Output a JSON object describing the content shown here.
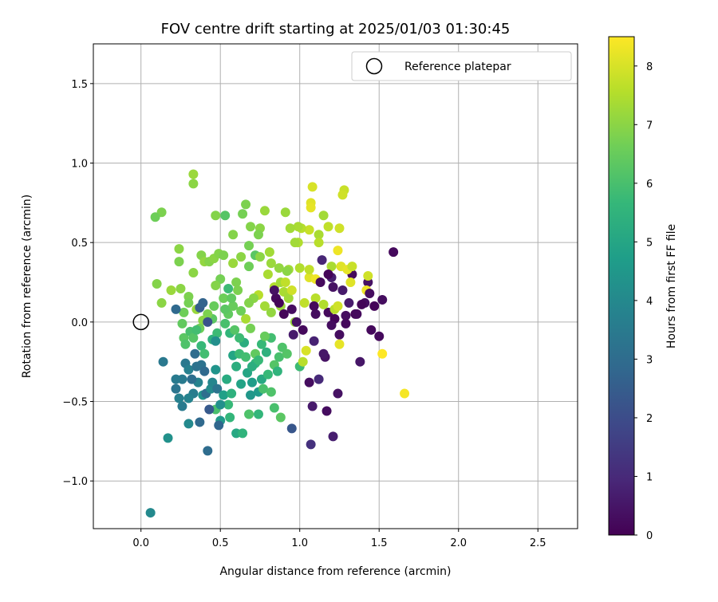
{
  "chart_data": {
    "type": "scatter",
    "title": "FOV centre drift starting at 2025/01/03 01:30:45",
    "xlabel": "Angular distance from reference (arcmin)",
    "ylabel": "Rotation from reference (arcmin)",
    "xlim": [
      -0.3,
      2.75
    ],
    "ylim": [
      -1.3,
      1.75
    ],
    "xticks": [
      0.0,
      0.5,
      1.0,
      1.5,
      2.0,
      2.5
    ],
    "xtick_labels": [
      "0.0",
      "0.5",
      "1.0",
      "1.5",
      "2.0",
      "2.5"
    ],
    "yticks": [
      -1.0,
      -0.5,
      0.0,
      0.5,
      1.0,
      1.5
    ],
    "ytick_labels": [
      "−1.0",
      "−0.5",
      "0.0",
      "0.5",
      "1.0",
      "1.5"
    ],
    "grid": true,
    "legend": {
      "placement": "top-right",
      "entries": [
        {
          "label": "Reference platepar",
          "marker": "open-circle"
        }
      ]
    },
    "reference_point": {
      "x": 0.0,
      "y": 0.0
    },
    "colorbar": {
      "label": "Hours from first FF file",
      "range": [
        0,
        8.5
      ],
      "ticks": [
        0,
        1,
        2,
        3,
        4,
        5,
        6,
        7,
        8
      ],
      "tick_labels": [
        "0",
        "1",
        "2",
        "3",
        "4",
        "5",
        "6",
        "7",
        "8"
      ],
      "colormap": "viridis"
    },
    "colormap_stops": [
      "#440154",
      "#482878",
      "#3e4989",
      "#31688e",
      "#26828e",
      "#1f9e89",
      "#35b779",
      "#6ece58",
      "#b5de2b",
      "#fde725"
    ],
    "points": [
      {
        "x": 1.59,
        "y": 0.44,
        "c": 0.2
      },
      {
        "x": 1.52,
        "y": 0.14,
        "c": 0.3
      },
      {
        "x": 1.5,
        "y": -0.09,
        "c": 0.2
      },
      {
        "x": 1.47,
        "y": 0.1,
        "c": 0.1
      },
      {
        "x": 1.45,
        "y": -0.05,
        "c": 0.2
      },
      {
        "x": 1.43,
        "y": 0.25,
        "c": 0.4
      },
      {
        "x": 1.41,
        "y": 0.12,
        "c": 0.3
      },
      {
        "x": 1.38,
        "y": -0.25,
        "c": 0.5
      },
      {
        "x": 1.35,
        "y": 0.05,
        "c": 0.1
      },
      {
        "x": 1.33,
        "y": 0.3,
        "c": 0.2
      },
      {
        "x": 1.29,
        "y": 0.04,
        "c": 0.3
      },
      {
        "x": 1.27,
        "y": 0.2,
        "c": 0.6
      },
      {
        "x": 1.25,
        "y": -0.08,
        "c": 0.3
      },
      {
        "x": 1.22,
        "y": 0.02,
        "c": 0.1
      },
      {
        "x": 1.2,
        "y": 0.28,
        "c": 0.7
      },
      {
        "x": 1.18,
        "y": 0.06,
        "c": 0.2
      },
      {
        "x": 1.16,
        "y": -0.22,
        "c": 0.4
      },
      {
        "x": 1.14,
        "y": 0.39,
        "c": 0.9
      },
      {
        "x": 1.12,
        "y": -0.36,
        "c": 1.0
      },
      {
        "x": 1.09,
        "y": -0.12,
        "c": 0.8
      },
      {
        "x": 1.06,
        "y": -0.38,
        "c": 0.3
      },
      {
        "x": 1.08,
        "y": -0.53,
        "c": 0.6
      },
      {
        "x": 1.17,
        "y": -0.56,
        "c": 0.3
      },
      {
        "x": 1.24,
        "y": -0.45,
        "c": 0.4
      },
      {
        "x": 1.21,
        "y": -0.72,
        "c": 0.7
      },
      {
        "x": 1.07,
        "y": -0.77,
        "c": 1.2
      },
      {
        "x": 0.95,
        "y": -0.67,
        "c": 2.3
      },
      {
        "x": 0.88,
        "y": -0.6,
        "c": 6.3
      },
      {
        "x": 0.84,
        "y": -0.54,
        "c": 6.0
      },
      {
        "x": 0.74,
        "y": -0.58,
        "c": 5.6
      },
      {
        "x": 0.68,
        "y": -0.58,
        "c": 6.1
      },
      {
        "x": 0.6,
        "y": -0.7,
        "c": 5.1
      },
      {
        "x": 0.64,
        "y": -0.7,
        "c": 5.5
      },
      {
        "x": 0.56,
        "y": -0.6,
        "c": 5.6
      },
      {
        "x": 0.55,
        "y": -0.52,
        "c": 5.7
      },
      {
        "x": 0.5,
        "y": -0.62,
        "c": 4.6
      },
      {
        "x": 0.49,
        "y": -0.65,
        "c": 2.8
      },
      {
        "x": 0.47,
        "y": -0.55,
        "c": 6.0
      },
      {
        "x": 0.43,
        "y": -0.55,
        "c": 2.4
      },
      {
        "x": 0.42,
        "y": -0.81,
        "c": 3.0
      },
      {
        "x": 0.37,
        "y": -0.63,
        "c": 2.9
      },
      {
        "x": 0.3,
        "y": -0.64,
        "c": 4.0
      },
      {
        "x": 0.26,
        "y": -0.53,
        "c": 3.5
      },
      {
        "x": 0.22,
        "y": -0.42,
        "c": 3.3
      },
      {
        "x": 0.17,
        "y": -0.73,
        "c": 4.3
      },
      {
        "x": 0.06,
        "y": -1.2,
        "c": 4.0
      },
      {
        "x": 0.14,
        "y": -0.25,
        "c": 3.4
      },
      {
        "x": 0.22,
        "y": -0.36,
        "c": 3.5
      },
      {
        "x": 0.28,
        "y": -0.26,
        "c": 3.4
      },
      {
        "x": 0.3,
        "y": -0.3,
        "c": 3.7
      },
      {
        "x": 0.33,
        "y": -0.45,
        "c": 3.6
      },
      {
        "x": 0.34,
        "y": -0.2,
        "c": 3.0
      },
      {
        "x": 0.36,
        "y": -0.38,
        "c": 3.8
      },
      {
        "x": 0.38,
        "y": -0.27,
        "c": 3.2
      },
      {
        "x": 0.39,
        "y": -0.46,
        "c": 4.4
      },
      {
        "x": 0.4,
        "y": -0.31,
        "c": 2.9
      },
      {
        "x": 0.41,
        "y": -0.45,
        "c": 3.1
      },
      {
        "x": 0.44,
        "y": -0.42,
        "c": 4.1
      },
      {
        "x": 0.45,
        "y": -0.38,
        "c": 3.9
      },
      {
        "x": 0.47,
        "y": -0.3,
        "c": 4.4
      },
      {
        "x": 0.48,
        "y": -0.42,
        "c": 3.3
      },
      {
        "x": 0.5,
        "y": -0.52,
        "c": 4.2
      },
      {
        "x": 0.52,
        "y": -0.46,
        "c": 4.8
      },
      {
        "x": 0.54,
        "y": -0.36,
        "c": 5.2
      },
      {
        "x": 0.57,
        "y": -0.45,
        "c": 5.4
      },
      {
        "x": 0.58,
        "y": -0.21,
        "c": 5.0
      },
      {
        "x": 0.6,
        "y": -0.28,
        "c": 5.3
      },
      {
        "x": 0.62,
        "y": -0.2,
        "c": 5.8
      },
      {
        "x": 0.63,
        "y": -0.39,
        "c": 4.9
      },
      {
        "x": 0.65,
        "y": -0.13,
        "c": 5.3
      },
      {
        "x": 0.67,
        "y": -0.32,
        "c": 5.0
      },
      {
        "x": 0.69,
        "y": -0.46,
        "c": 4.5
      },
      {
        "x": 0.7,
        "y": -0.38,
        "c": 4.7
      },
      {
        "x": 0.72,
        "y": -0.26,
        "c": 5.6
      },
      {
        "x": 0.74,
        "y": -0.44,
        "c": 4.6
      },
      {
        "x": 0.76,
        "y": -0.36,
        "c": 5.1
      },
      {
        "x": 0.77,
        "y": -0.42,
        "c": 6.0
      },
      {
        "x": 0.79,
        "y": -0.19,
        "c": 5.4
      },
      {
        "x": 0.8,
        "y": -0.33,
        "c": 5.7
      },
      {
        "x": 0.82,
        "y": -0.44,
        "c": 6.1
      },
      {
        "x": 0.84,
        "y": -0.27,
        "c": 6.2
      },
      {
        "x": 0.86,
        "y": -0.31,
        "c": 5.5
      },
      {
        "x": 0.87,
        "y": -0.22,
        "c": 6.0
      },
      {
        "x": 0.89,
        "y": -0.16,
        "c": 6.1
      },
      {
        "x": 0.92,
        "y": -0.2,
        "c": 6.2
      },
      {
        "x": 0.82,
        "y": -0.1,
        "c": 5.9
      },
      {
        "x": 0.76,
        "y": -0.14,
        "c": 5.7
      },
      {
        "x": 0.72,
        "y": -0.2,
        "c": 6.4
      },
      {
        "x": 1.0,
        "y": -0.28,
        "c": 5.8
      },
      {
        "x": 1.02,
        "y": -0.25,
        "c": 7.6
      },
      {
        "x": 1.04,
        "y": -0.18,
        "c": 8.0
      },
      {
        "x": 0.97,
        "y": 0.0,
        "c": 7.2
      },
      {
        "x": 1.03,
        "y": 0.12,
        "c": 7.7
      },
      {
        "x": 1.1,
        "y": 0.15,
        "c": 7.6
      },
      {
        "x": 1.15,
        "y": 0.11,
        "c": 7.5
      },
      {
        "x": 1.22,
        "y": 0.08,
        "c": 7.6
      },
      {
        "x": 1.24,
        "y": 0.1,
        "c": 7.9
      },
      {
        "x": 1.25,
        "y": -0.14,
        "c": 8.2
      },
      {
        "x": 1.42,
        "y": 0.2,
        "c": 8.3
      },
      {
        "x": 1.52,
        "y": -0.2,
        "c": 8.5
      },
      {
        "x": 1.66,
        "y": -0.45,
        "c": 8.4
      },
      {
        "x": 1.28,
        "y": 0.83,
        "c": 7.8
      },
      {
        "x": 1.27,
        "y": 0.8,
        "c": 7.9
      },
      {
        "x": 1.08,
        "y": 0.85,
        "c": 8.0
      },
      {
        "x": 1.07,
        "y": 0.75,
        "c": 8.1
      },
      {
        "x": 1.07,
        "y": 0.72,
        "c": 8.2
      },
      {
        "x": 1.15,
        "y": 0.67,
        "c": 7.3
      },
      {
        "x": 1.18,
        "y": 0.6,
        "c": 7.7
      },
      {
        "x": 1.25,
        "y": 0.59,
        "c": 7.9
      },
      {
        "x": 1.12,
        "y": 0.55,
        "c": 7.4
      },
      {
        "x": 1.06,
        "y": 0.58,
        "c": 7.8
      },
      {
        "x": 1.01,
        "y": 0.59,
        "c": 7.6
      },
      {
        "x": 0.99,
        "y": 0.6,
        "c": 7.4
      },
      {
        "x": 0.94,
        "y": 0.59,
        "c": 7.3
      },
      {
        "x": 0.91,
        "y": 0.69,
        "c": 7.2
      },
      {
        "x": 0.99,
        "y": 0.5,
        "c": 7.5
      },
      {
        "x": 0.97,
        "y": 0.5,
        "c": 7.3
      },
      {
        "x": 1.12,
        "y": 0.5,
        "c": 7.6
      },
      {
        "x": 1.2,
        "y": 0.35,
        "c": 7.4
      },
      {
        "x": 1.24,
        "y": 0.45,
        "c": 8.3
      },
      {
        "x": 1.26,
        "y": 0.35,
        "c": 8.1
      },
      {
        "x": 1.3,
        "y": 0.33,
        "c": 8.2
      },
      {
        "x": 1.33,
        "y": 0.35,
        "c": 7.8
      },
      {
        "x": 1.32,
        "y": 0.25,
        "c": 8.1
      },
      {
        "x": 1.43,
        "y": 0.29,
        "c": 7.9
      },
      {
        "x": 1.06,
        "y": 0.28,
        "c": 8.1
      },
      {
        "x": 1.1,
        "y": 0.27,
        "c": 8.3
      },
      {
        "x": 1.06,
        "y": 0.33,
        "c": 7.7
      },
      {
        "x": 1.0,
        "y": 0.34,
        "c": 7.5
      },
      {
        "x": 0.93,
        "y": 0.33,
        "c": 7.3
      },
      {
        "x": 0.87,
        "y": 0.34,
        "c": 7.1
      },
      {
        "x": 0.78,
        "y": 0.7,
        "c": 7.2
      },
      {
        "x": 0.75,
        "y": 0.59,
        "c": 7.0
      },
      {
        "x": 0.74,
        "y": 0.55,
        "c": 6.8
      },
      {
        "x": 0.69,
        "y": 0.6,
        "c": 6.9
      },
      {
        "x": 0.66,
        "y": 0.74,
        "c": 6.8
      },
      {
        "x": 0.64,
        "y": 0.68,
        "c": 6.7
      },
      {
        "x": 0.58,
        "y": 0.55,
        "c": 6.9
      },
      {
        "x": 0.53,
        "y": 0.67,
        "c": 6.2
      },
      {
        "x": 0.47,
        "y": 0.67,
        "c": 6.9
      },
      {
        "x": 0.33,
        "y": 0.93,
        "c": 7.2
      },
      {
        "x": 0.33,
        "y": 0.87,
        "c": 7.0
      },
      {
        "x": 0.13,
        "y": 0.69,
        "c": 6.8
      },
      {
        "x": 0.09,
        "y": 0.66,
        "c": 6.6
      },
      {
        "x": 0.24,
        "y": 0.46,
        "c": 7.0
      },
      {
        "x": 0.24,
        "y": 0.38,
        "c": 6.8
      },
      {
        "x": 0.1,
        "y": 0.24,
        "c": 6.9
      },
      {
        "x": 0.13,
        "y": 0.12,
        "c": 7.0
      },
      {
        "x": 0.19,
        "y": 0.2,
        "c": 7.2
      },
      {
        "x": 0.25,
        "y": 0.21,
        "c": 7.0
      },
      {
        "x": 0.3,
        "y": 0.16,
        "c": 6.8
      },
      {
        "x": 0.33,
        "y": 0.31,
        "c": 7.0
      },
      {
        "x": 0.38,
        "y": 0.42,
        "c": 6.9
      },
      {
        "x": 0.4,
        "y": 0.38,
        "c": 7.1
      },
      {
        "x": 0.43,
        "y": 0.38,
        "c": 6.9
      },
      {
        "x": 0.46,
        "y": 0.4,
        "c": 7.0
      },
      {
        "x": 0.49,
        "y": 0.43,
        "c": 6.9
      },
      {
        "x": 0.52,
        "y": 0.42,
        "c": 6.8
      },
      {
        "x": 0.58,
        "y": 0.37,
        "c": 7.2
      },
      {
        "x": 0.63,
        "y": 0.41,
        "c": 7.0
      },
      {
        "x": 0.68,
        "y": 0.48,
        "c": 6.7
      },
      {
        "x": 0.72,
        "y": 0.42,
        "c": 6.3
      },
      {
        "x": 0.75,
        "y": 0.41,
        "c": 7.0
      },
      {
        "x": 0.81,
        "y": 0.44,
        "c": 7.3
      },
      {
        "x": 0.82,
        "y": 0.37,
        "c": 7.2
      },
      {
        "x": 0.8,
        "y": 0.3,
        "c": 7.4
      },
      {
        "x": 0.84,
        "y": 0.22,
        "c": 7.5
      },
      {
        "x": 0.88,
        "y": 0.25,
        "c": 7.3
      },
      {
        "x": 0.9,
        "y": 0.19,
        "c": 7.4
      },
      {
        "x": 0.93,
        "y": 0.15,
        "c": 7.3
      },
      {
        "x": 0.88,
        "y": 0.1,
        "c": 7.2
      },
      {
        "x": 0.82,
        "y": 0.06,
        "c": 7.1
      },
      {
        "x": 0.78,
        "y": 0.1,
        "c": 7.3
      },
      {
        "x": 0.74,
        "y": 0.17,
        "c": 7.6
      },
      {
        "x": 0.71,
        "y": 0.15,
        "c": 7.0
      },
      {
        "x": 0.68,
        "y": 0.12,
        "c": 6.9
      },
      {
        "x": 0.66,
        "y": 0.02,
        "c": 7.4
      },
      {
        "x": 0.63,
        "y": 0.07,
        "c": 6.6
      },
      {
        "x": 0.61,
        "y": 0.2,
        "c": 6.8
      },
      {
        "x": 0.58,
        "y": 0.1,
        "c": 6.5
      },
      {
        "x": 0.55,
        "y": 0.05,
        "c": 6.4
      },
      {
        "x": 0.52,
        "y": 0.15,
        "c": 6.6
      },
      {
        "x": 0.5,
        "y": 0.27,
        "c": 6.7
      },
      {
        "x": 0.47,
        "y": 0.23,
        "c": 6.9
      },
      {
        "x": 0.46,
        "y": 0.1,
        "c": 6.5
      },
      {
        "x": 0.45,
        "y": 0.02,
        "c": 6.3
      },
      {
        "x": 0.42,
        "y": 0.05,
        "c": 6.8
      },
      {
        "x": 0.39,
        "y": 0.01,
        "c": 7.0
      },
      {
        "x": 0.37,
        "y": -0.04,
        "c": 6.6
      },
      {
        "x": 0.35,
        "y": 0.08,
        "c": 7.2
      },
      {
        "x": 0.3,
        "y": 0.12,
        "c": 6.7
      },
      {
        "x": 0.27,
        "y": 0.06,
        "c": 6.6
      },
      {
        "x": 0.26,
        "y": -0.01,
        "c": 6.4
      },
      {
        "x": 0.27,
        "y": -0.1,
        "c": 6.3
      },
      {
        "x": 0.28,
        "y": -0.14,
        "c": 6.1
      },
      {
        "x": 0.31,
        "y": -0.06,
        "c": 6.0
      },
      {
        "x": 0.33,
        "y": -0.1,
        "c": 6.2
      },
      {
        "x": 0.35,
        "y": -0.05,
        "c": 5.9
      },
      {
        "x": 0.38,
        "y": -0.15,
        "c": 5.7
      },
      {
        "x": 0.4,
        "y": -0.2,
        "c": 5.9
      },
      {
        "x": 0.45,
        "y": -0.11,
        "c": 5.4
      },
      {
        "x": 0.48,
        "y": -0.07,
        "c": 5.8
      },
      {
        "x": 0.53,
        "y": -0.01,
        "c": 6.0
      },
      {
        "x": 0.56,
        "y": -0.07,
        "c": 5.6
      },
      {
        "x": 0.59,
        "y": -0.05,
        "c": 6.2
      },
      {
        "x": 0.62,
        "y": -0.1,
        "c": 5.8
      },
      {
        "x": 0.66,
        "y": -0.22,
        "c": 5.9
      },
      {
        "x": 0.7,
        "y": -0.28,
        "c": 5.3
      },
      {
        "x": 0.74,
        "y": -0.24,
        "c": 5.7
      },
      {
        "x": 0.78,
        "y": -0.09,
        "c": 6.5
      },
      {
        "x": 0.69,
        "y": -0.04,
        "c": 6.7
      },
      {
        "x": 0.35,
        "y": -0.28,
        "c": 3.2
      },
      {
        "x": 0.32,
        "y": -0.36,
        "c": 3.1
      },
      {
        "x": 0.3,
        "y": -0.48,
        "c": 3.8
      },
      {
        "x": 0.24,
        "y": -0.48,
        "c": 3.7
      },
      {
        "x": 0.26,
        "y": -0.36,
        "c": 3.5
      },
      {
        "x": 0.37,
        "y": 0.09,
        "c": 2.5
      },
      {
        "x": 0.39,
        "y": 0.12,
        "c": 2.7
      },
      {
        "x": 0.42,
        "y": 0.0,
        "c": 2.2
      },
      {
        "x": 0.22,
        "y": 0.08,
        "c": 2.9
      },
      {
        "x": 0.47,
        "y": -0.12,
        "c": 4.2
      },
      {
        "x": 0.55,
        "y": 0.21,
        "c": 5.8
      },
      {
        "x": 0.9,
        "y": 0.05,
        "c": 0.1
      },
      {
        "x": 0.95,
        "y": 0.08,
        "c": 0.3
      },
      {
        "x": 0.98,
        "y": 0.0,
        "c": 0.4
      },
      {
        "x": 1.02,
        "y": -0.05,
        "c": 0.2
      },
      {
        "x": 0.96,
        "y": -0.08,
        "c": 0.6
      },
      {
        "x": 1.1,
        "y": 0.05,
        "c": 0.3
      },
      {
        "x": 1.13,
        "y": 0.25,
        "c": 0.2
      },
      {
        "x": 1.18,
        "y": 0.3,
        "c": 0.1
      },
      {
        "x": 1.21,
        "y": 0.22,
        "c": 0.4
      },
      {
        "x": 1.31,
        "y": 0.12,
        "c": 0.6
      },
      {
        "x": 1.36,
        "y": 0.05,
        "c": 0.2
      },
      {
        "x": 1.39,
        "y": 0.11,
        "c": 0.1
      },
      {
        "x": 1.44,
        "y": 0.18,
        "c": 0.3
      },
      {
        "x": 1.29,
        "y": -0.01,
        "c": 0.2
      },
      {
        "x": 1.2,
        "y": -0.02,
        "c": 0.3
      },
      {
        "x": 1.15,
        "y": -0.2,
        "c": 0.5
      },
      {
        "x": 0.85,
        "y": 0.15,
        "c": 0.2
      },
      {
        "x": 0.84,
        "y": 0.2,
        "c": 0.4
      },
      {
        "x": 0.87,
        "y": 0.12,
        "c": 0.1
      },
      {
        "x": 1.09,
        "y": 0.1,
        "c": 0.2
      },
      {
        "x": 0.91,
        "y": 0.25,
        "c": 7.7
      },
      {
        "x": 0.95,
        "y": 0.2,
        "c": 7.9
      },
      {
        "x": 0.92,
        "y": 0.32,
        "c": 7.0
      },
      {
        "x": 0.68,
        "y": 0.35,
        "c": 6.6
      },
      {
        "x": 0.6,
        "y": 0.25,
        "c": 6.8
      },
      {
        "x": 0.57,
        "y": 0.15,
        "c": 6.4
      },
      {
        "x": 0.53,
        "y": 0.08,
        "c": 6.3
      }
    ]
  }
}
